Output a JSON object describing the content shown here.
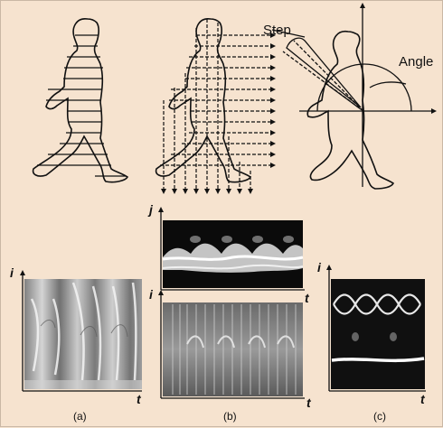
{
  "figure": {
    "annotations": {
      "step": "Step",
      "angle": "Angle"
    },
    "panels": [
      {
        "id": "a",
        "caption": "(a)",
        "axis_v": "i",
        "axis_h": "t"
      },
      {
        "id": "b",
        "caption": "(b)",
        "axis_v_top": "j",
        "axis_h_top": "t",
        "axis_v": "i",
        "axis_h": "t"
      },
      {
        "id": "c",
        "caption": "(c)",
        "axis_v": "i",
        "axis_h": "t"
      }
    ]
  },
  "colors": {
    "background": "#f6e3cf",
    "ink": "#111111"
  }
}
